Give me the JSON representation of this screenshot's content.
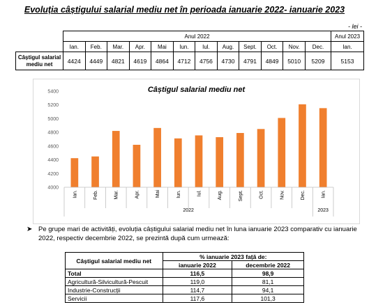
{
  "title": "Evoluția câștigului salarial mediu net în perioada ianuarie 2022- ianuarie 2023",
  "unit": "- lei -",
  "top_table": {
    "year_2022": "Anul 2022",
    "year_2023": "Anul 2023",
    "months": [
      "Ian.",
      "Feb.",
      "Mar.",
      "Apr.",
      "Mai",
      "Iun.",
      "Iul.",
      "Aug.",
      "Sept.",
      "Oct.",
      "Nov.",
      "Dec.",
      "Ian."
    ],
    "row_label_1": "Câștigul salarial",
    "row_label_2": "mediu net",
    "values": [
      "4424",
      "4449",
      "4821",
      "4619",
      "4864",
      "4712",
      "4756",
      "4730",
      "4791",
      "4849",
      "5010",
      "5209",
      "5153"
    ]
  },
  "chart_data": {
    "type": "bar",
    "title": "Câștigul salarial mediu net",
    "categories": [
      "Ian.",
      "Feb.",
      "Mar.",
      "Apr.",
      "Mai",
      "Iun.",
      "Iul.",
      "Aug.",
      "Sept.",
      "Oct.",
      "Nov.",
      "Dec.",
      "Ian."
    ],
    "values": [
      4424,
      4449,
      4821,
      4619,
      4864,
      4712,
      4756,
      4730,
      4791,
      4849,
      5010,
      5209,
      5153
    ],
    "group_labels": [
      "2022",
      "2023"
    ],
    "ylim": [
      4000,
      5400
    ],
    "yticks": [
      4000,
      4200,
      4400,
      4600,
      4800,
      5000,
      5200,
      5400
    ],
    "color": "#f07f2e",
    "grid": false,
    "legend": "none"
  },
  "paragraph": "Pe grupe mari de activități, evoluția câștigului salarial mediu net în luna ianuarie 2023 comparativ cu ianuarie 2022, respectiv decembrie 2022, se prezintă după cum urmează:",
  "bottom_table": {
    "header_label": "Câștigul salarial mediu net",
    "header_group": "% ianuarie 2023 față de:",
    "col1": "ianuarie 2022",
    "col2": "decembrie 2022",
    "rows": [
      {
        "label": "Total",
        "v1": "116,5",
        "v2": "98,9"
      },
      {
        "label": "Agricultură-Silvicultură-Pescuit",
        "v1": "119,0",
        "v2": "81,1"
      },
      {
        "label": "Industrie-Construcții",
        "v1": "114,7",
        "v2": "94,1"
      },
      {
        "label": "Servicii",
        "v1": "117,6",
        "v2": "101,3"
      }
    ]
  }
}
